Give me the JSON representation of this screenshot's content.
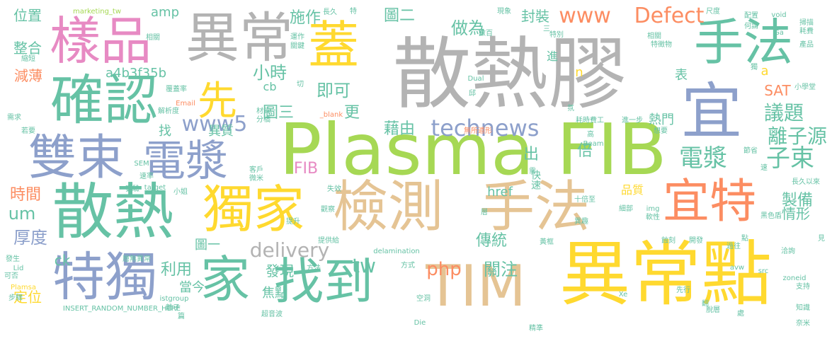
{
  "words": [
    {
      "text": "散熱膠",
      "color": "#b3b3b3"
    },
    {
      "text": "Plasma FIB",
      "color": "#a6d854"
    },
    {
      "text": "異常點",
      "color": "#ffd92f"
    },
    {
      "text": "手法",
      "color": "#e5c494"
    },
    {
      "text": "檢測",
      "color": "#e5c494"
    },
    {
      "text": "散熱",
      "color": "#66c2a5"
    },
    {
      "text": "獨家",
      "color": "#ffd92f"
    },
    {
      "text": "TIM",
      "color": "#e5c494"
    },
    {
      "text": "確認",
      "color": "#66c2a5"
    },
    {
      "text": "樣品",
      "color": "#e78ac3"
    },
    {
      "text": "異常",
      "color": "#b3b3b3"
    },
    {
      "text": "蓋",
      "color": "#ffd92f"
    },
    {
      "text": "宜",
      "color": "#8da0cb"
    },
    {
      "text": "手法",
      "color": "#66c2a5"
    },
    {
      "text": "雙束",
      "color": "#8da0cb"
    },
    {
      "text": "電漿",
      "color": "#8da0cb"
    },
    {
      "text": "特獨",
      "color": "#8da0cb"
    },
    {
      "text": "家",
      "color": "#66c2a5"
    },
    {
      "text": "找到",
      "color": "#66c2a5"
    },
    {
      "text": "宜特",
      "color": "#fc8d62"
    },
    {
      "text": "先",
      "color": "#ffd92f"
    },
    {
      "text": "technews",
      "color": "#8da0cb"
    },
    {
      "text": "www5",
      "color": "#8da0cb"
    },
    {
      "text": "delivery",
      "color": "#b3b3b3"
    },
    {
      "text": "電漿",
      "color": "#66c2a5"
    },
    {
      "text": "子束",
      "color": "#66c2a5"
    },
    {
      "text": "議題",
      "color": "#66c2a5"
    },
    {
      "text": "離子源",
      "color": "#66c2a5"
    },
    {
      "text": "www",
      "color": "#fc8d62"
    },
    {
      "text": "Defect",
      "color": "#fc8d62"
    },
    {
      "text": "小時",
      "color": "#66c2a5"
    },
    {
      "text": "即可",
      "color": "#66c2a5"
    },
    {
      "text": "更",
      "color": "#66c2a5"
    },
    {
      "text": "圖三",
      "color": "#66c2a5"
    },
    {
      "text": "圖二",
      "color": "#66c2a5"
    },
    {
      "text": "做為",
      "color": "#66c2a5"
    },
    {
      "text": "施作",
      "color": "#66c2a5"
    },
    {
      "text": "封裝",
      "color": "#66c2a5"
    },
    {
      "text": "藉由",
      "color": "#66c2a5"
    },
    {
      "text": "php",
      "color": "#fc8d62"
    },
    {
      "text": "關注",
      "color": "#66c2a5"
    },
    {
      "text": "tw",
      "color": "#66c2a5"
    },
    {
      "text": "傳統",
      "color": "#66c2a5"
    },
    {
      "text": "發現",
      "color": "#66c2a5"
    },
    {
      "text": "利用",
      "color": "#66c2a5"
    },
    {
      "text": "厚度",
      "color": "#8da0cb"
    },
    {
      "text": "時間",
      "color": "#fc8d62"
    },
    {
      "text": "um",
      "color": "#66c2a5"
    },
    {
      "text": "FIB",
      "color": "#e78ac3"
    },
    {
      "text": "出",
      "color": "#66c2a5"
    },
    {
      "text": "倍",
      "color": "#66c2a5"
    },
    {
      "text": "快速",
      "color": "#66c2a5"
    },
    {
      "text": "href",
      "color": "#66c2a5"
    },
    {
      "text": "品質",
      "color": "#ffd92f"
    },
    {
      "text": "製備",
      "color": "#66c2a5"
    },
    {
      "text": "情形",
      "color": "#66c2a5"
    },
    {
      "text": "熱門",
      "color": "#66c2a5"
    },
    {
      "text": "異質",
      "color": "#66c2a5"
    },
    {
      "text": "焦點",
      "color": "#66c2a5"
    },
    {
      "text": "當今",
      "color": "#66c2a5"
    },
    {
      "text": "定位",
      "color": "#ffd92f"
    },
    {
      "text": "圖一",
      "color": "#66c2a5"
    },
    {
      "text": "ck",
      "color": "#66c2a5"
    },
    {
      "text": "SAT",
      "color": "#fc8d62"
    },
    {
      "text": "表",
      "color": "#66c2a5"
    },
    {
      "text": "進",
      "color": "#66c2a5"
    },
    {
      "text": "n",
      "color": "#ffd92f"
    },
    {
      "text": "a",
      "color": "#ffd92f"
    },
    {
      "text": "cb",
      "color": "#66c2a5"
    },
    {
      "text": "找",
      "color": "#66c2a5"
    },
    {
      "text": "a4b3f35b",
      "color": "#66c2a5"
    },
    {
      "text": "amp",
      "color": "#66c2a5"
    },
    {
      "text": "位置",
      "color": "#66c2a5"
    },
    {
      "text": "整合",
      "color": "#66c2a5"
    },
    {
      "text": "減薄",
      "color": "#fc8d62"
    },
    {
      "text": "marketing_tw",
      "color": "#a6d854"
    },
    {
      "text": "INSERT_RANDOM_NUMBER_HERE",
      "color": "#66c2a5"
    },
    {
      "text": "istgroup",
      "color": "#66c2a5"
    },
    {
      "text": "zoneid",
      "color": "#66c2a5"
    },
    {
      "text": "delamination",
      "color": "#66c2a5"
    },
    {
      "text": "Plamsa",
      "color": "#ffd92f"
    },
    {
      "text": "void",
      "color": "#66c2a5"
    },
    {
      "text": "Dual",
      "color": "#66c2a5"
    },
    {
      "text": "Beam",
      "color": "#66c2a5"
    },
    {
      "text": "target",
      "color": "#66c2a5"
    },
    {
      "text": "_blank",
      "color": "#fc8d62"
    },
    {
      "text": "Email",
      "color": "#fc8d62"
    },
    {
      "text": "src",
      "color": "#66c2a5"
    },
    {
      "text": "img",
      "color": "#66c2a5"
    },
    {
      "text": "avw",
      "color": "#66c2a5"
    },
    {
      "text": "Die",
      "color": "#66c2a5"
    },
    {
      "text": "Lid",
      "color": "#66c2a5"
    },
    {
      "text": "SEM",
      "color": "#66c2a5"
    },
    {
      "text": "Xe",
      "color": "#66c2a5"
    },
    {
      "text": "Ga",
      "color": "#66c2a5"
    },
    {
      "text": "長久",
      "color": "#66c2a5"
    },
    {
      "text": "現象",
      "color": "#66c2a5"
    },
    {
      "text": "尺度",
      "color": "#66c2a5"
    },
    {
      "text": "配置",
      "color": "#66c2a5"
    },
    {
      "text": "何謂",
      "color": "#66c2a5"
    },
    {
      "text": "掃描",
      "color": "#66c2a5"
    },
    {
      "text": "耗費",
      "color": "#66c2a5"
    },
    {
      "text": "產品",
      "color": "#66c2a5"
    },
    {
      "text": "數百",
      "color": "#66c2a5"
    },
    {
      "text": "特別",
      "color": "#66c2a5"
    },
    {
      "text": "相關",
      "color": "#66c2a5"
    },
    {
      "text": "特徵物",
      "color": "#66c2a5"
    },
    {
      "text": "小學堂",
      "color": "#66c2a5"
    },
    {
      "text": "獨",
      "color": "#66c2a5"
    },
    {
      "text": "縮短",
      "color": "#66c2a5"
    },
    {
      "text": "相關",
      "color": "#66c2a5"
    },
    {
      "text": "運作",
      "color": "#66c2a5"
    },
    {
      "text": "關鍵",
      "color": "#66c2a5"
    },
    {
      "text": "覆蓋率",
      "color": "#66c2a5"
    },
    {
      "text": "材質",
      "color": "#66c2a5"
    },
    {
      "text": "分橋",
      "color": "#66c2a5"
    },
    {
      "text": "解析度",
      "color": "#66c2a5"
    },
    {
      "text": "需求",
      "color": "#66c2a5"
    },
    {
      "text": "若要",
      "color": "#66c2a5"
    },
    {
      "text": "無所遁形",
      "color": "#fc8d62"
    },
    {
      "text": "耗時費工",
      "color": "#66c2a5"
    },
    {
      "text": "進一步",
      "color": "#66c2a5"
    },
    {
      "text": "想要",
      "color": "#66c2a5"
    },
    {
      "text": "節省",
      "color": "#66c2a5"
    },
    {
      "text": "客戶",
      "color": "#66c2a5"
    },
    {
      "text": "微米",
      "color": "#66c2a5"
    },
    {
      "text": "速率",
      "color": "#66c2a5"
    },
    {
      "text": "實驗",
      "color": "#66c2a5"
    },
    {
      "text": "小姐",
      "color": "#66c2a5"
    },
    {
      "text": "失效",
      "color": "#66c2a5"
    },
    {
      "text": "長久以來",
      "color": "#66c2a5"
    },
    {
      "text": "黑色盾",
      "color": "#66c2a5"
    },
    {
      "text": "提升",
      "color": "#66c2a5"
    },
    {
      "text": "觀察",
      "color": "#66c2a5"
    },
    {
      "text": "十倍至",
      "color": "#66c2a5"
    },
    {
      "text": "細部",
      "color": "#66c2a5"
    },
    {
      "text": "軟性",
      "color": "#66c2a5"
    },
    {
      "text": "提供給",
      "color": "#66c2a5"
    },
    {
      "text": "層無異常",
      "color": "#66c2a5"
    },
    {
      "text": "發生",
      "color": "#66c2a5"
    },
    {
      "text": "可否",
      "color": "#66c2a5"
    },
    {
      "text": "步驟",
      "color": "#66c2a5"
    },
    {
      "text": "方法",
      "color": "#66c2a5"
    },
    {
      "text": "方式",
      "color": "#66c2a5"
    },
    {
      "text": "空洞",
      "color": "#66c2a5"
    },
    {
      "text": "超音波",
      "color": "#66c2a5"
    },
    {
      "text": "精準",
      "color": "#66c2a5"
    },
    {
      "text": "先行",
      "color": "#66c2a5"
    },
    {
      "text": "脫層",
      "color": "#66c2a5"
    },
    {
      "text": "處",
      "color": "#66c2a5"
    },
    {
      "text": "支持",
      "color": "#66c2a5"
    },
    {
      "text": "知識",
      "color": "#66c2a5"
    },
    {
      "text": "奈米",
      "color": "#66c2a5"
    },
    {
      "text": "蝕刻",
      "color": "#66c2a5"
    },
    {
      "text": "開發",
      "color": "#66c2a5"
    },
    {
      "text": "過往",
      "color": "#66c2a5"
    },
    {
      "text": "洽詢",
      "color": "#66c2a5"
    },
    {
      "text": "離子",
      "color": "#66c2a5"
    },
    {
      "text": "高",
      "color": "#66c2a5"
    },
    {
      "text": "氛",
      "color": "#66c2a5"
    },
    {
      "text": "需",
      "color": "#66c2a5"
    },
    {
      "text": "邱",
      "color": "#66c2a5"
    },
    {
      "text": "特",
      "color": "#66c2a5"
    },
    {
      "text": "三",
      "color": "#66c2a5"
    },
    {
      "text": "切",
      "color": "#66c2a5"
    },
    {
      "text": "篇",
      "color": "#66c2a5"
    },
    {
      "text": "點",
      "color": "#66c2a5"
    },
    {
      "text": "速",
      "color": "#66c2a5"
    },
    {
      "text": "見",
      "color": "#66c2a5"
    },
    {
      "text": "層",
      "color": "#66c2a5"
    },
    {
      "text": "翻",
      "color": "#66c2a5"
    },
    {
      "text": "黃框",
      "color": "#66c2a5"
    },
    {
      "text": "異趣",
      "color": "#66c2a5"
    }
  ]
}
